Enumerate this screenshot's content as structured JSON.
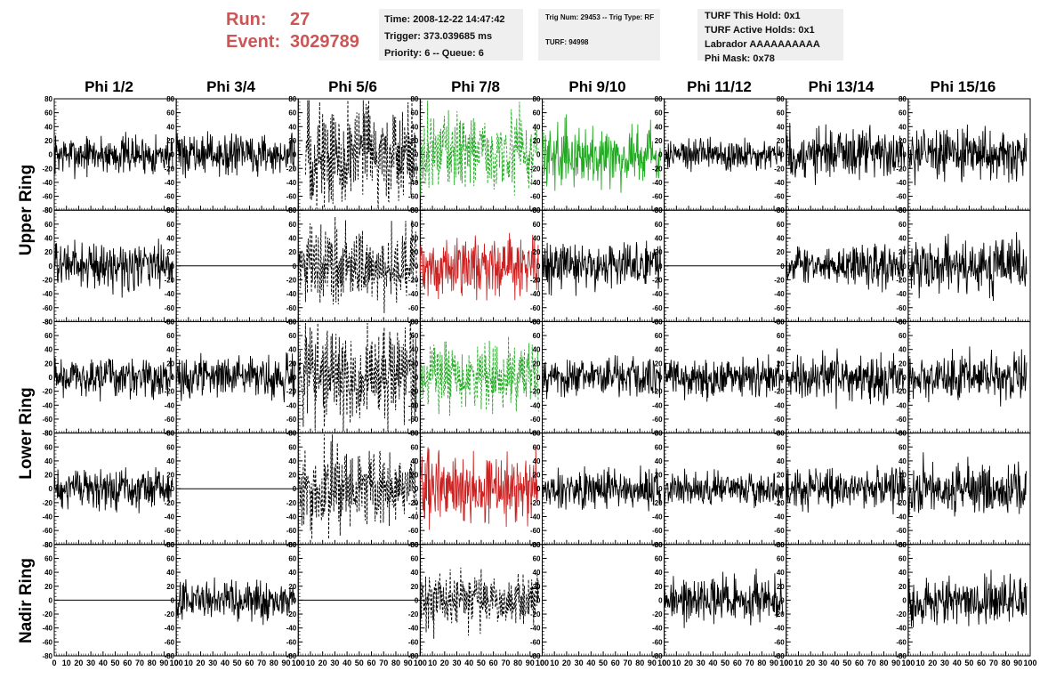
{
  "header": {
    "run_label": "Run:",
    "run_value": "27",
    "event_label": "Event:",
    "event_value": "3029789",
    "time": "Time: 2008-12-22 14:47:42",
    "trigger": "Trigger: 373.039685 ms",
    "priority": "Priority: 6 -- Queue: 6",
    "trig_num": "Trig Num: 29453 -- Trig Type: RF",
    "turf": "TURF: 94998",
    "turf_this_hold": "TURF This Hold: 0x1",
    "turf_active_holds": "TURF Active Holds: 0x1",
    "labrador": "Labrador AAAAAAAAAA",
    "phi_mask": "Phi Mask: 0x78"
  },
  "columns": [
    "Phi 1/2",
    "Phi 3/4",
    "Phi 5/6",
    "Phi 7/8",
    "Phi 9/10",
    "Phi 11/12",
    "Phi 13/14",
    "Phi 15/16"
  ],
  "ring_labels": [
    "Upper Ring",
    "Lower Ring",
    "Nadir Ring"
  ],
  "chart_data": {
    "type": "line",
    "xlim": [
      0,
      100
    ],
    "ylim": [
      -80,
      80
    ],
    "x_ticks": [
      "0",
      "10",
      "20",
      "30",
      "40",
      "50",
      "60",
      "70",
      "80",
      "90",
      "100"
    ],
    "y_ticks": [
      "80",
      "60",
      "40",
      "20",
      "0",
      "-20",
      "-40",
      "-60",
      "-80"
    ],
    "colors": {
      "black": "#000000",
      "green": "#22aa22",
      "red": "#cc2222"
    },
    "panels": [
      [
        {
          "style": "solid",
          "color": "black",
          "amp": 12,
          "start": 0,
          "end": 97
        },
        {
          "style": "solid",
          "color": "black",
          "amp": 12,
          "start": 0,
          "end": 97
        },
        {
          "style": "dashed",
          "color": "black",
          "amp": 32,
          "start": 6,
          "end": 97
        },
        {
          "style": "dashed",
          "color": "green",
          "amp": 22,
          "start": 0,
          "end": 97
        },
        {
          "style": "solid",
          "color": "green",
          "amp": 18,
          "start": 0,
          "end": 97
        },
        {
          "style": "solid",
          "color": "black",
          "amp": 10,
          "start": 0,
          "end": 97
        },
        {
          "style": "solid",
          "color": "black",
          "amp": 16,
          "start": 0,
          "end": 97
        },
        {
          "style": "solid",
          "color": "black",
          "amp": 15,
          "start": 0,
          "end": 97
        }
      ],
      [
        {
          "style": "solid",
          "color": "black",
          "amp": 14,
          "start": 0,
          "end": 97
        },
        {
          "style": "flat",
          "color": "black",
          "amp": 0,
          "start": 0,
          "end": 100
        },
        {
          "style": "dashed",
          "color": "black",
          "amp": 24,
          "start": 0,
          "end": 97
        },
        {
          "style": "solid",
          "color": "red",
          "amp": 18,
          "start": 0,
          "end": 97
        },
        {
          "style": "solid",
          "color": "black",
          "amp": 14,
          "start": 0,
          "end": 97
        },
        {
          "style": "flat",
          "color": "black",
          "amp": 0,
          "start": 0,
          "end": 100
        },
        {
          "style": "solid",
          "color": "black",
          "amp": 12,
          "start": 0,
          "end": 97
        },
        {
          "style": "solid",
          "color": "black",
          "amp": 16,
          "start": 0,
          "end": 97
        }
      ],
      [
        {
          "style": "solid",
          "color": "black",
          "amp": 12,
          "start": 0,
          "end": 97
        },
        {
          "style": "solid",
          "color": "black",
          "amp": 12,
          "start": 0,
          "end": 97
        },
        {
          "style": "dashed",
          "color": "black",
          "amp": 28,
          "start": 0,
          "end": 97
        },
        {
          "style": "dashed",
          "color": "green",
          "amp": 20,
          "start": 0,
          "end": 97
        },
        {
          "style": "solid",
          "color": "black",
          "amp": 12,
          "start": 0,
          "end": 97
        },
        {
          "style": "solid",
          "color": "black",
          "amp": 12,
          "start": 0,
          "end": 97
        },
        {
          "style": "solid",
          "color": "black",
          "amp": 14,
          "start": 0,
          "end": 97
        },
        {
          "style": "solid",
          "color": "black",
          "amp": 14,
          "start": 0,
          "end": 97
        }
      ],
      [
        {
          "style": "solid",
          "color": "black",
          "amp": 12,
          "start": 0,
          "end": 97
        },
        {
          "style": "flat",
          "color": "black",
          "amp": 0,
          "start": 0,
          "end": 100
        },
        {
          "style": "dashed",
          "color": "black",
          "amp": 24,
          "start": 0,
          "end": 97
        },
        {
          "style": "solid",
          "color": "red",
          "amp": 22,
          "start": 0,
          "end": 97
        },
        {
          "style": "solid",
          "color": "black",
          "amp": 12,
          "start": 0,
          "end": 97
        },
        {
          "style": "solid",
          "color": "black",
          "amp": 10,
          "start": 0,
          "end": 97
        },
        {
          "style": "solid",
          "color": "black",
          "amp": 12,
          "start": 0,
          "end": 97
        },
        {
          "style": "solid",
          "color": "black",
          "amp": 16,
          "start": 0,
          "end": 97
        }
      ],
      [
        {
          "style": "flat",
          "color": "black",
          "amp": 0,
          "start": 0,
          "end": 100
        },
        {
          "style": "solid",
          "color": "black",
          "amp": 12,
          "start": 0,
          "end": 97
        },
        {
          "style": "flat",
          "color": "black",
          "amp": 0,
          "start": 0,
          "end": 100
        },
        {
          "style": "dashed",
          "color": "black",
          "amp": 18,
          "start": 0,
          "end": 97
        },
        {
          "style": "empty",
          "color": "black",
          "amp": 0,
          "start": 0,
          "end": 0
        },
        {
          "style": "solid",
          "color": "black",
          "amp": 14,
          "start": 0,
          "end": 97
        },
        {
          "style": "empty",
          "color": "black",
          "amp": 0,
          "start": 0,
          "end": 0
        },
        {
          "style": "solid",
          "color": "black",
          "amp": 14,
          "start": 0,
          "end": 97
        }
      ]
    ]
  }
}
